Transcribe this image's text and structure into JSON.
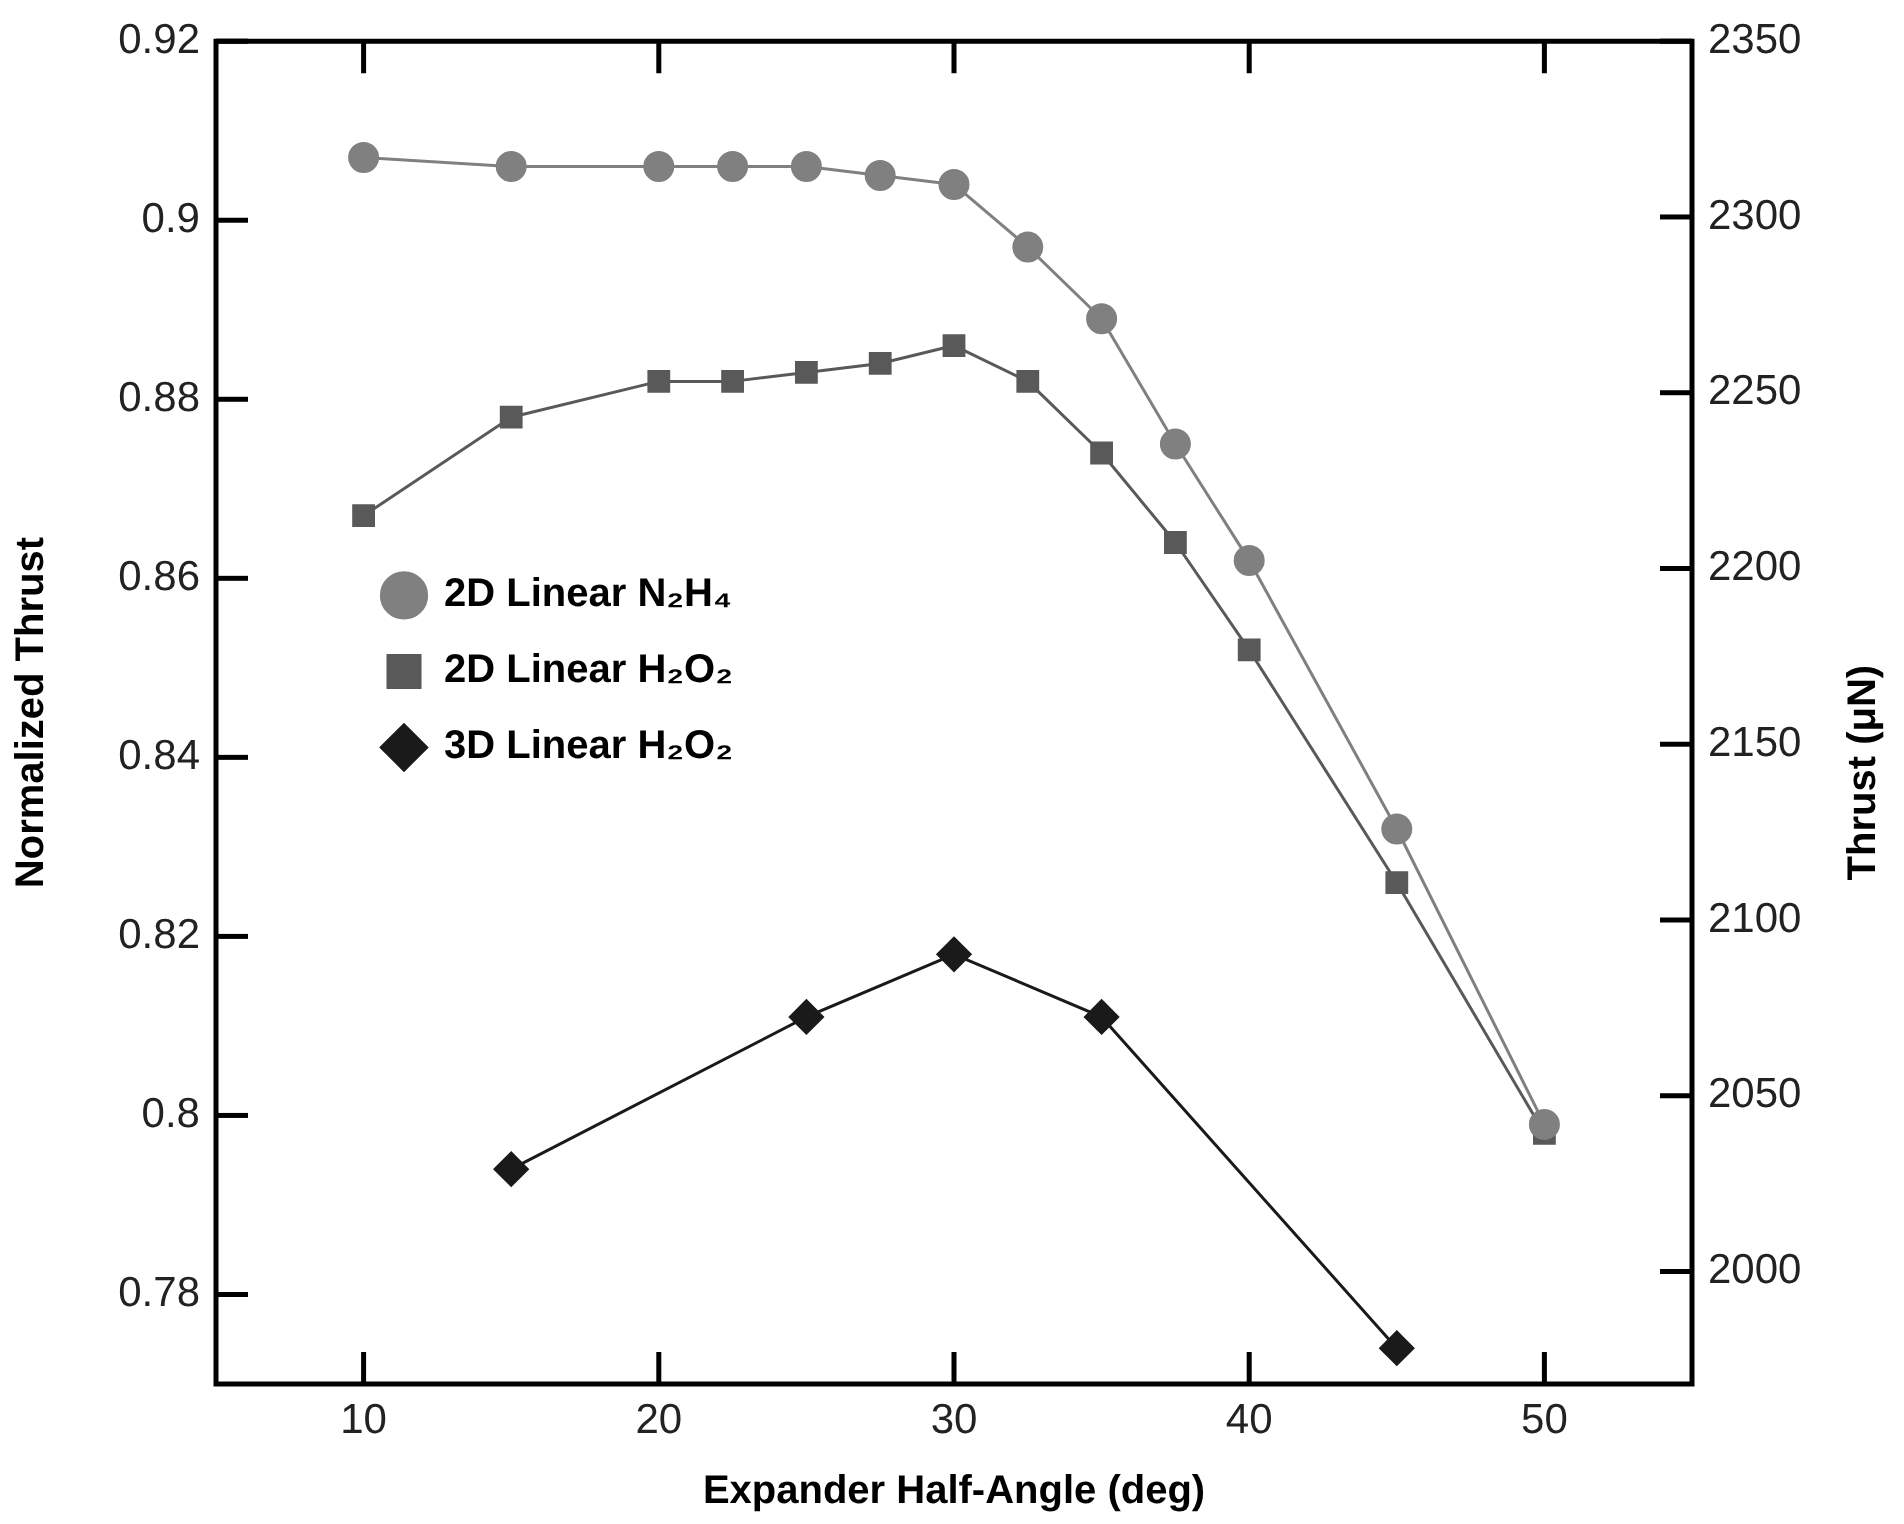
{
  "chart_data": {
    "type": "line",
    "xlabel": "Expander Half-Angle (deg)",
    "ylabel": "Normalized Thrust",
    "y2label": "Thrust (μN)",
    "xlim": [
      5,
      55
    ],
    "xticks": [
      10,
      20,
      30,
      40,
      50
    ],
    "ylim": [
      0.77,
      0.92
    ],
    "yticks": [
      0.78,
      0.8,
      0.82,
      0.84,
      0.86,
      0.88,
      0.9,
      0.92
    ],
    "y2lim": [
      1968,
      2350
    ],
    "y2ticks": [
      2000,
      2050,
      2100,
      2150,
      2200,
      2250,
      2300,
      2350
    ],
    "grid": false,
    "legend": "left",
    "line_style": "solid",
    "series": [
      {
        "name": "2D Linear N₂H₄",
        "color": "#808080",
        "marker": "circle",
        "x": [
          10,
          15,
          20,
          22.5,
          25,
          27.5,
          30,
          32.5,
          35,
          37.5,
          40,
          45,
          50
        ],
        "values": [
          0.907,
          0.906,
          0.906,
          0.906,
          0.906,
          0.905,
          0.904,
          0.897,
          0.889,
          0.875,
          0.862,
          0.832,
          0.799
        ]
      },
      {
        "name": "2D Linear H₂O₂",
        "color": "#595959",
        "marker": "square",
        "x": [
          10,
          15,
          20,
          22.5,
          25,
          27.5,
          30,
          32.5,
          35,
          37.5,
          40,
          45,
          50
        ],
        "values": [
          0.867,
          0.878,
          0.882,
          0.882,
          0.883,
          0.884,
          0.886,
          0.882,
          0.874,
          0.864,
          0.852,
          0.826,
          0.798
        ]
      },
      {
        "name": "3D Linear H₂O₂",
        "color": "#1a1a1a",
        "marker": "diamond",
        "x": [
          15,
          25,
          30,
          35,
          45
        ],
        "values": [
          0.794,
          0.811,
          0.818,
          0.811,
          0.774
        ]
      }
    ]
  }
}
